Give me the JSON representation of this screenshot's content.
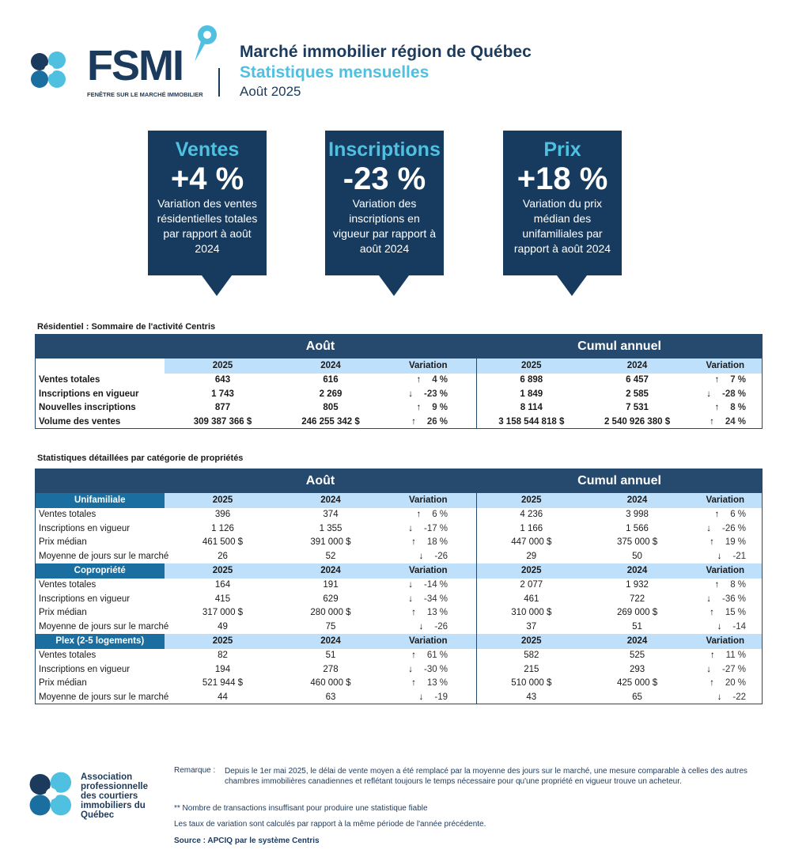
{
  "header": {
    "logo_text": "FSMI",
    "logo_subtitle": "FENÊTRE SUR LE MARCHÉ IMMOBILIER",
    "title": "Marché immobilier région de Québec",
    "subtitle": "Statistiques mensuelles",
    "period": "Août 2025"
  },
  "colors": {
    "navy": "#173b5e",
    "light_blue": "#4fc0e0",
    "header_row": "#264a6e",
    "subheader_row": "#bfe0fb",
    "category": "#1a6fa0"
  },
  "highlights": [
    {
      "title": "Ventes",
      "value": "+4 %",
      "desc": "Variation des ventes résidentielles totales par rapport à août 2024"
    },
    {
      "title": "Inscriptions",
      "value": "-23 %",
      "desc": "Variation des inscriptions en vigueur par rapport à août 2024"
    },
    {
      "title": "Prix",
      "value": "+18 %",
      "desc": "Variation du prix médian des unifamiliales par rapport à août 2024"
    }
  ],
  "summary": {
    "caption": "Résidentiel : Sommaire de l'activité Centris",
    "group1": "Août",
    "group2": "Cumul annuel",
    "cols": [
      "2025",
      "2024",
      "Variation",
      "2025",
      "2024",
      "Variation"
    ],
    "rows": [
      [
        "Ventes totales",
        "643",
        "616",
        "up",
        "4 %",
        "6 898",
        "6 457",
        "up",
        "7 %"
      ],
      [
        "Inscriptions en vigueur",
        "1 743",
        "2 269",
        "down",
        "-23 %",
        "1 849",
        "2 585",
        "down",
        "-28 %"
      ],
      [
        "Nouvelles inscriptions",
        "877",
        "805",
        "up",
        "9 %",
        "8 114",
        "7 531",
        "up",
        "8 %"
      ],
      [
        "Volume des ventes",
        "309 387 366 $",
        "246 255 342 $",
        "up",
        "26 %",
        "3 158 544 818 $",
        "2 540 926 380 $",
        "up",
        "24 %"
      ]
    ]
  },
  "detail": {
    "caption": "Statistiques détaillées par catégorie de propriétés",
    "group1": "Août",
    "group2": "Cumul annuel",
    "cols": [
      "2025",
      "2024",
      "Variation",
      "2025",
      "2024",
      "Variation"
    ],
    "categories": [
      {
        "name": "Unifamiliale",
        "rows": [
          [
            "Ventes totales",
            "396",
            "374",
            "up",
            "6 %",
            "4 236",
            "3 998",
            "up",
            "6 %"
          ],
          [
            "Inscriptions en vigueur",
            "1 126",
            "1 355",
            "down",
            "-17 %",
            "1 166",
            "1 566",
            "down",
            "-26 %"
          ],
          [
            "Prix médian",
            "461 500 $",
            "391 000 $",
            "up",
            "18 %",
            "447 000 $",
            "375 000 $",
            "up",
            "19 %"
          ],
          [
            "Moyenne de jours sur le marché",
            "26",
            "52",
            "down",
            "-26",
            "29",
            "50",
            "down",
            "-21"
          ]
        ]
      },
      {
        "name": "Copropriété",
        "rows": [
          [
            "Ventes totales",
            "164",
            "191",
            "down",
            "-14 %",
            "2 077",
            "1 932",
            "up",
            "8 %"
          ],
          [
            "Inscriptions en vigueur",
            "415",
            "629",
            "down",
            "-34 %",
            "461",
            "722",
            "down",
            "-36 %"
          ],
          [
            "Prix médian",
            "317 000 $",
            "280 000 $",
            "up",
            "13 %",
            "310 000 $",
            "269 000 $",
            "up",
            "15 %"
          ],
          [
            "Moyenne de jours sur le marché",
            "49",
            "75",
            "down",
            "-26",
            "37",
            "51",
            "down",
            "-14"
          ]
        ]
      },
      {
        "name": "Plex (2-5 logements)",
        "rows": [
          [
            "Ventes totales",
            "82",
            "51",
            "up",
            "61 %",
            "582",
            "525",
            "up",
            "11 %"
          ],
          [
            "Inscriptions en vigueur",
            "194",
            "278",
            "down",
            "-30 %",
            "215",
            "293",
            "down",
            "-27 %"
          ],
          [
            "Prix médian",
            "521 944 $",
            "460 000 $",
            "up",
            "13 %",
            "510 000 $",
            "425 000 $",
            "up",
            "20 %"
          ],
          [
            "Moyenne de jours sur le marché",
            "44",
            "63",
            "down",
            "-19",
            "43",
            "65",
            "down",
            "-22"
          ]
        ]
      }
    ]
  },
  "footer": {
    "org": "Association professionnelle des courtiers immobiliers du Québec",
    "remark_label": "Remarque :",
    "remark": "Depuis le 1er mai 2025, le délai de vente moyen a été remplacé par la moyenne des jours sur le marché, une mesure comparable à celles des autres chambres immobilières canadiennes et reflétant toujours le temps nécessaire pour qu'une propriété en vigueur trouve un acheteur.",
    "note1": "** Nombre de transactions insuffisant pour produire une statistique fiable",
    "note2": "Les taux de variation sont calculés par rapport à la même période de l'année précédente.",
    "source": "Source : APCIQ par le système Centris"
  }
}
